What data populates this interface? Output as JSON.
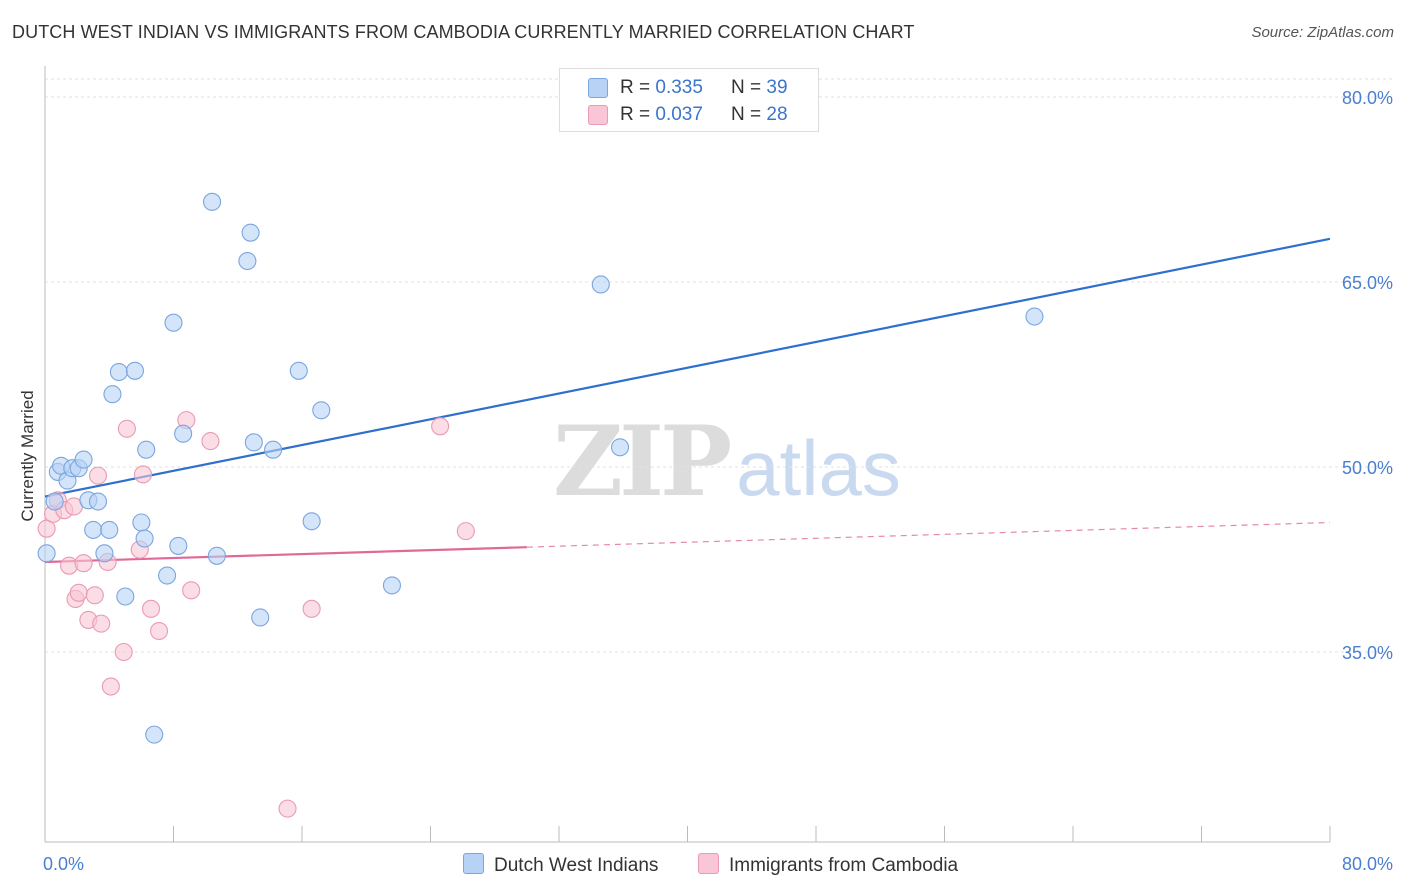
{
  "header": {
    "title": "DUTCH WEST INDIAN VS IMMIGRANTS FROM CAMBODIA CURRENTLY MARRIED CORRELATION CHART",
    "source": "Source: ZipAtlas.com"
  },
  "watermark": {
    "zip": "ZIP",
    "atlas": "atlas"
  },
  "colors": {
    "blue_fill": "#b8d2f5",
    "blue_stroke": "#7aa6e0",
    "blue_line": "#2f6fce",
    "pink_fill": "#f8c6d6",
    "pink_stroke": "#e99ab4",
    "pink_line": "#e06a97",
    "grid": "#e2e2e2",
    "tick_text": "#4a7fd0"
  },
  "legend": {
    "rows": [
      {
        "r_label": "R = ",
        "r_value": "0.335",
        "n_label": "N = ",
        "n_value": "39"
      },
      {
        "r_label": "R = ",
        "r_value": "0.037",
        "n_label": "N = ",
        "n_value": "28"
      }
    ]
  },
  "bottom_legend": {
    "blue": "Dutch West Indians",
    "pink": "Immigrants from Cambodia"
  },
  "chart_data": {
    "type": "scatter",
    "title": "DUTCH WEST INDIAN VS IMMIGRANTS FROM CAMBODIA CURRENTLY MARRIED CORRELATION CHART",
    "xlabel": "",
    "ylabel": "Currently Married",
    "xlim": [
      0,
      80
    ],
    "ylim": [
      20,
      82
    ],
    "x_tick_labels": [
      "0.0%",
      "80.0%"
    ],
    "y_ticks": [
      35,
      50,
      65,
      80
    ],
    "y_tick_labels": [
      "35.0%",
      "50.0%",
      "65.0%",
      "80.0%"
    ],
    "grid": true,
    "series": [
      {
        "name": "Dutch West Indians",
        "r": 0.335,
        "n": 39,
        "trend": {
          "x": [
            0,
            80
          ],
          "y": [
            47.6,
            68.5
          ],
          "dashed_from_x": null
        },
        "points": [
          {
            "x": 0.1,
            "y": 43.0
          },
          {
            "x": 0.6,
            "y": 47.2
          },
          {
            "x": 0.8,
            "y": 49.6
          },
          {
            "x": 1.0,
            "y": 50.1
          },
          {
            "x": 1.4,
            "y": 48.9
          },
          {
            "x": 1.7,
            "y": 49.9
          },
          {
            "x": 2.1,
            "y": 49.9
          },
          {
            "x": 2.4,
            "y": 50.6
          },
          {
            "x": 2.7,
            "y": 47.3
          },
          {
            "x": 3.0,
            "y": 44.9
          },
          {
            "x": 3.3,
            "y": 47.2
          },
          {
            "x": 3.7,
            "y": 43.0
          },
          {
            "x": 4.0,
            "y": 44.9
          },
          {
            "x": 4.2,
            "y": 55.9
          },
          {
            "x": 4.6,
            "y": 57.7
          },
          {
            "x": 5.0,
            "y": 39.5
          },
          {
            "x": 5.6,
            "y": 57.8
          },
          {
            "x": 6.0,
            "y": 45.5
          },
          {
            "x": 6.2,
            "y": 44.2
          },
          {
            "x": 6.3,
            "y": 51.4
          },
          {
            "x": 6.8,
            "y": 28.3
          },
          {
            "x": 7.6,
            "y": 41.2
          },
          {
            "x": 8.0,
            "y": 61.7
          },
          {
            "x": 8.3,
            "y": 43.6
          },
          {
            "x": 8.6,
            "y": 52.7
          },
          {
            "x": 10.4,
            "y": 71.5
          },
          {
            "x": 10.7,
            "y": 42.8
          },
          {
            "x": 12.6,
            "y": 66.7
          },
          {
            "x": 12.8,
            "y": 69.0
          },
          {
            "x": 13.0,
            "y": 52.0
          },
          {
            "x": 13.4,
            "y": 37.8
          },
          {
            "x": 14.2,
            "y": 51.4
          },
          {
            "x": 15.8,
            "y": 57.8
          },
          {
            "x": 16.6,
            "y": 45.6
          },
          {
            "x": 17.2,
            "y": 54.6
          },
          {
            "x": 21.6,
            "y": 40.4
          },
          {
            "x": 34.6,
            "y": 64.8
          },
          {
            "x": 35.8,
            "y": 51.6
          },
          {
            "x": 61.6,
            "y": 62.2
          }
        ]
      },
      {
        "name": "Immigrants from Cambodia",
        "r": 0.037,
        "n": 28,
        "trend": {
          "x": [
            0,
            80
          ],
          "y": [
            42.3,
            45.5
          ],
          "dashed_from_x": 30.0
        },
        "points": [
          {
            "x": 0.1,
            "y": 45.0
          },
          {
            "x": 0.5,
            "y": 46.2
          },
          {
            "x": 0.8,
            "y": 47.3
          },
          {
            "x": 1.2,
            "y": 46.5
          },
          {
            "x": 1.5,
            "y": 42.0
          },
          {
            "x": 1.8,
            "y": 46.8
          },
          {
            "x": 1.9,
            "y": 39.3
          },
          {
            "x": 2.1,
            "y": 39.8
          },
          {
            "x": 2.4,
            "y": 42.2
          },
          {
            "x": 2.7,
            "y": 37.6
          },
          {
            "x": 3.1,
            "y": 39.6
          },
          {
            "x": 3.3,
            "y": 49.3
          },
          {
            "x": 3.5,
            "y": 37.3
          },
          {
            "x": 3.9,
            "y": 42.3
          },
          {
            "x": 4.1,
            "y": 32.2
          },
          {
            "x": 4.9,
            "y": 35.0
          },
          {
            "x": 5.1,
            "y": 53.1
          },
          {
            "x": 5.9,
            "y": 43.3
          },
          {
            "x": 6.1,
            "y": 49.4
          },
          {
            "x": 6.6,
            "y": 38.5
          },
          {
            "x": 7.1,
            "y": 36.7
          },
          {
            "x": 8.8,
            "y": 53.8
          },
          {
            "x": 9.1,
            "y": 40.0
          },
          {
            "x": 10.3,
            "y": 52.1
          },
          {
            "x": 15.1,
            "y": 22.3
          },
          {
            "x": 16.6,
            "y": 38.5
          },
          {
            "x": 24.6,
            "y": 53.3
          },
          {
            "x": 26.2,
            "y": 44.8
          }
        ]
      }
    ]
  }
}
